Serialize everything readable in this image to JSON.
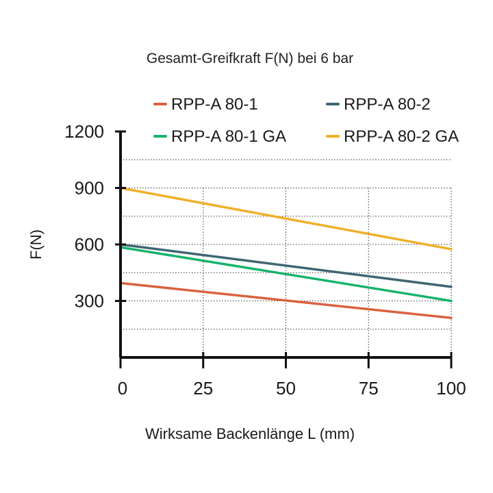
{
  "chart_data": {
    "type": "line",
    "title": "Gesamt-Greifkraft F(N) bei 6 bar",
    "xlabel": "Wirksame Backenlänge L (mm)",
    "ylabel": "F(N)",
    "xlim": [
      0,
      100
    ],
    "ylim": [
      0,
      1200
    ],
    "xticks": [
      0,
      25,
      50,
      75,
      100
    ],
    "xtick_labels": [
      "0",
      "25",
      "50",
      "75",
      "100"
    ],
    "yticks": [
      300,
      600,
      900,
      1200
    ],
    "ytick_labels": [
      "300",
      "600",
      "900",
      "1200"
    ],
    "grid": true,
    "legend_position": "top",
    "series": [
      {
        "name": "RPP-A 80-1",
        "color": "#d9623f",
        "x": [
          0,
          100
        ],
        "y": [
          395,
          210
        ]
      },
      {
        "name": "RPP-A 80-2",
        "color": "#3f6673",
        "x": [
          0,
          100
        ],
        "y": [
          600,
          375
        ]
      },
      {
        "name": "RPP-A 80-1 GA",
        "color": "#17b36b",
        "x": [
          0,
          100
        ],
        "y": [
          585,
          300
        ]
      },
      {
        "name": "RPP-A 80-2 GA",
        "color": "#f0b02c",
        "x": [
          0,
          100
        ],
        "y": [
          900,
          575
        ]
      }
    ]
  }
}
